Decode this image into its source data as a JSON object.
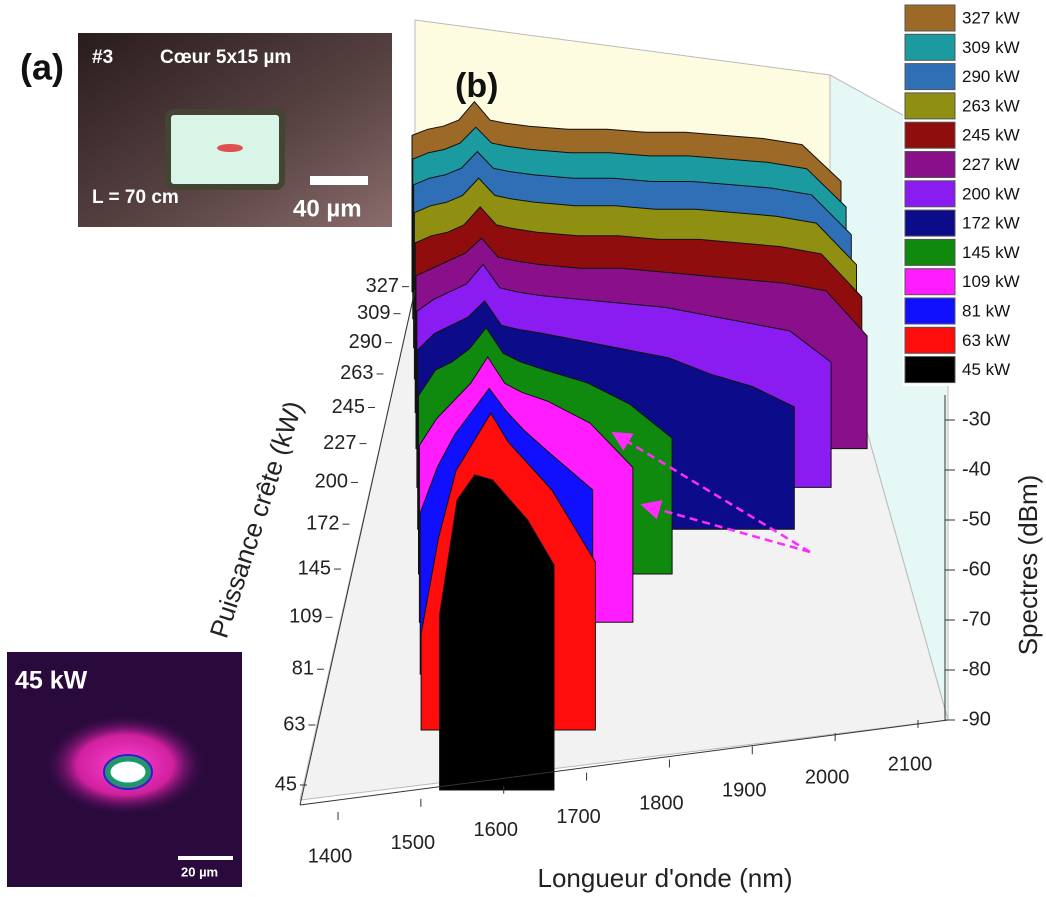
{
  "chart_data": {
    "type": "waterfall",
    "x_label": "Longueur d'onde (nm)",
    "depth_label": "Puissance crête (kW)",
    "y_label": "Spectres (dBm)",
    "x": [
      1500,
      1520,
      1540,
      1560,
      1580,
      1600,
      1620,
      1650,
      1700,
      1750,
      1800,
      1850,
      1900,
      1950,
      2000,
      2050
    ],
    "xlim": [
      1400,
      2100
    ],
    "xticks": [
      1400,
      1500,
      1600,
      1700,
      1800,
      1900,
      2000,
      2100
    ],
    "ylim": [
      -90,
      -25
    ],
    "yticks": [
      -90,
      -80,
      -70,
      -60,
      -50,
      -40,
      -30
    ],
    "depth_ticks": [
      45,
      63,
      81,
      109,
      145,
      172,
      200,
      227,
      245,
      263,
      290,
      309,
      327
    ],
    "series": [
      {
        "name": "327 kW",
        "color": "#9c6a26",
        "values": [
          -39,
          -37,
          -36,
          -34,
          -28,
          -34,
          -35,
          -36,
          -37,
          -37,
          -38,
          -38,
          -39,
          -40,
          -42,
          -54
        ]
      },
      {
        "name": "309 kW",
        "color": "#1b9aa0",
        "values": [
          -40,
          -38,
          -37,
          -35,
          -30,
          -35,
          -36,
          -37,
          -38,
          -38,
          -39,
          -39,
          -40,
          -41,
          -43,
          -55
        ]
      },
      {
        "name": "290 kW",
        "color": "#2f6fb5",
        "values": [
          -41,
          -39,
          -38,
          -36,
          -31,
          -36,
          -37,
          -38,
          -39,
          -39,
          -40,
          -40,
          -41,
          -42,
          -44,
          -56
        ]
      },
      {
        "name": "263 kW",
        "color": "#8f8f12",
        "values": [
          -42,
          -40,
          -39,
          -37,
          -32,
          -37,
          -38,
          -39,
          -40,
          -40,
          -41,
          -41,
          -42,
          -43,
          -45,
          -57
        ]
      },
      {
        "name": "245 kW",
        "color": "#8f0d0d",
        "values": [
          -43,
          -41,
          -40,
          -38,
          -33,
          -38,
          -39,
          -40,
          -41,
          -41,
          -42,
          -42,
          -43,
          -44,
          -46,
          -58
        ]
      },
      {
        "name": "227 kW",
        "color": "#8a0f8a",
        "values": [
          -44,
          -42,
          -40,
          -38,
          -34,
          -39,
          -40,
          -41,
          -42,
          -42,
          -43,
          -44,
          -45,
          -46,
          -48,
          -60
        ]
      },
      {
        "name": "200 kW",
        "color": "#8a1cf2",
        "values": [
          -45,
          -42,
          -40,
          -38,
          -33,
          -39,
          -40,
          -41,
          -42,
          -43,
          -44,
          -46,
          -48,
          -50,
          -58,
          null
        ]
      },
      {
        "name": "172 kW",
        "color": "#0c0c8a",
        "values": [
          -46,
          -42,
          -40,
          -38,
          -34,
          -40,
          -41,
          -42,
          -44,
          -46,
          -48,
          -52,
          -55,
          -60,
          null,
          null
        ]
      },
      {
        "name": "145 kW",
        "color": "#0f8a0f",
        "values": [
          -48,
          -42,
          -40,
          -37,
          -32,
          -38,
          -40,
          -42,
          -45,
          -50,
          -58,
          null,
          null,
          null,
          null,
          null
        ]
      },
      {
        "name": "109 kW",
        "color": "#ff1cff",
        "values": [
          -50,
          -44,
          -40,
          -36,
          -30,
          -36,
          -38,
          -40,
          -45,
          -55,
          null,
          null,
          null,
          null,
          null,
          null
        ]
      },
      {
        "name": "81 kW",
        "color": "#1010ff",
        "values": [
          -55,
          -45,
          -38,
          -33,
          -28,
          -33,
          -37,
          -42,
          -50,
          null,
          null,
          null,
          null,
          null,
          null,
          null
        ]
      },
      {
        "name": "63 kW",
        "color": "#ff0d0d",
        "values": [
          -70,
          -50,
          -36,
          -30,
          -24,
          -30,
          -34,
          -40,
          -55,
          null,
          null,
          null,
          null,
          null,
          null,
          null
        ]
      },
      {
        "name": "45 kW",
        "color": "#000000",
        "values": [
          null,
          -55,
          -32,
          -27,
          -28,
          -32,
          -36,
          -45,
          null,
          null,
          null,
          null,
          null,
          null,
          null,
          null
        ]
      }
    ]
  },
  "annotations": {
    "panel_a": "(a)",
    "fiber_id": "#3",
    "core": "Cœur 5x15 µm",
    "length": "L = 70 cm",
    "scale_a": "40 µm",
    "panel_b": "(b)",
    "mode_power": "45 kW",
    "scale_mode": "20 µm"
  }
}
